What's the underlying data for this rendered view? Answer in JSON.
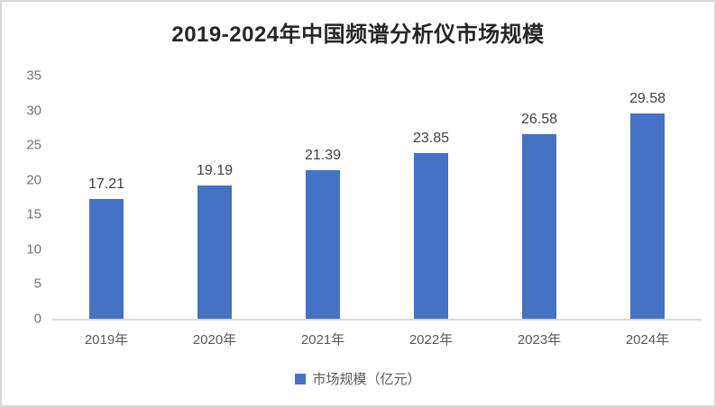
{
  "chart_data": {
    "type": "bar",
    "title": "2019-2024年中国频谱分析仪市场规模",
    "categories": [
      "2019年",
      "2020年",
      "2021年",
      "2022年",
      "2023年",
      "2024年"
    ],
    "values": [
      17.21,
      19.19,
      21.39,
      23.85,
      26.58,
      29.58
    ],
    "data_labels": [
      "17.21",
      "19.19",
      "21.39",
      "23.85",
      "26.58",
      "29.58"
    ],
    "series_name": "市场规模（亿元）",
    "xlabel": "",
    "ylabel": "",
    "ylim": [
      0,
      35
    ],
    "yticks": [
      0,
      5,
      10,
      15,
      20,
      25,
      30,
      35
    ],
    "grid": false,
    "legend": {
      "label": "市场规模（亿元）",
      "position": "bottom"
    },
    "colors": {
      "bar": "#4472c4",
      "title_text": "#262626",
      "axis_text": "#737373",
      "data_label_text": "#404040",
      "axis_line": "#d9d9d9"
    }
  }
}
